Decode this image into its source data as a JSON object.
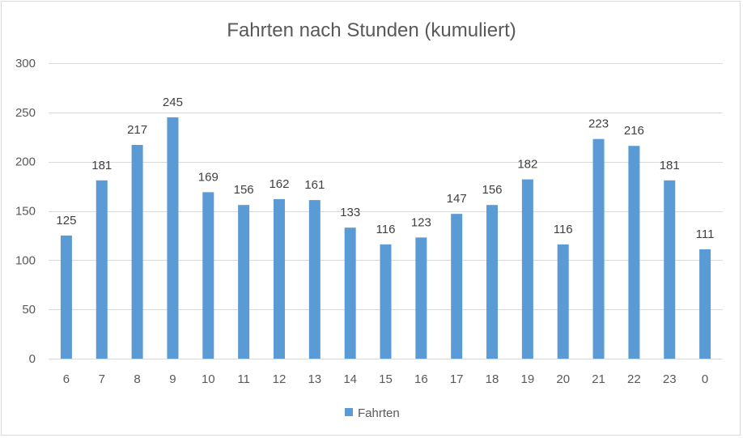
{
  "chart_data": {
    "type": "bar",
    "title": "Fahrten nach Stunden (kumuliert)",
    "xlabel": "",
    "ylabel": "",
    "categories": [
      "6",
      "7",
      "8",
      "9",
      "10",
      "11",
      "12",
      "13",
      "14",
      "15",
      "16",
      "17",
      "18",
      "19",
      "20",
      "21",
      "22",
      "23",
      "0"
    ],
    "series": [
      {
        "name": "Fahrten",
        "values": [
          125,
          181,
          217,
          245,
          169,
          156,
          162,
          161,
          133,
          116,
          123,
          147,
          156,
          182,
          116,
          223,
          216,
          181,
          111
        ]
      }
    ],
    "ylim": [
      0,
      300
    ],
    "yticks": [
      0,
      50,
      100,
      150,
      200,
      250,
      300
    ],
    "grid": true,
    "legend_position": "bottom",
    "data_labels": true,
    "colors": {
      "bar": "#5b9bd5",
      "grid": "#d9d9d9",
      "text": "#595959"
    }
  }
}
